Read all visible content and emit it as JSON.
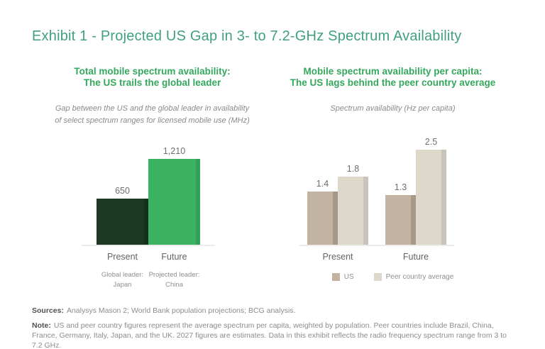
{
  "page": {
    "title": "Exhibit 1 - Projected US Gap in 3- to 7.2-GHz Spectrum Availability"
  },
  "colors": {
    "title_teal": "#3FA082",
    "heading_green": "#34A85C",
    "baseline_gray": "#ECECEC",
    "dark_green_bar": "#1B3823",
    "light_green_bar": "#3CB263",
    "tan_bar": "#C2B3A3",
    "beige_bar": "#DED8CB"
  },
  "chart_data": [
    {
      "type": "bar",
      "heading_line1": "Total mobile spectrum availability:",
      "heading_line2": "The US trails the global leader",
      "subtitle_line1": "Gap between the US and the global leader in availability",
      "subtitle_line2": "of select spectrum ranges for licensed mobile use (MHz)",
      "unit": "MHz",
      "categories": [
        "Present",
        "Future"
      ],
      "series": [
        {
          "name": "Gap (MHz)",
          "values": [
            650,
            1210
          ],
          "value_labels": [
            "650",
            "1,210"
          ],
          "colors": [
            "#1B3823",
            "#3CB263"
          ],
          "edge_colors": [
            "#12301D",
            "#34A058"
          ]
        }
      ],
      "category_captions": [
        [
          "Global leader:",
          "Japan"
        ],
        [
          "Projected leader:",
          "China"
        ]
      ],
      "ylim": [
        0,
        1210
      ],
      "grid": false,
      "legend": null
    },
    {
      "type": "bar",
      "heading_line1": "Mobile spectrum availability per capita:",
      "heading_line2": "The US lags behind the peer country average",
      "subtitle_line1": "Spectrum availability (Hz per capita)",
      "subtitle_line2": "",
      "unit": "Hz per capita",
      "categories": [
        "Present",
        "Future"
      ],
      "series": [
        {
          "name": "US",
          "values": [
            1.4,
            1.3
          ],
          "value_labels": [
            "1.4",
            "1.3"
          ],
          "color": "#C2B3A3",
          "edge_color": "#A89888"
        },
        {
          "name": "Peer country average",
          "values": [
            1.8,
            2.5
          ],
          "value_labels": [
            "1.8",
            "2.5"
          ],
          "color": "#DED8CB",
          "edge_color": "#C8C4BA"
        }
      ],
      "ylim": [
        0,
        2.5
      ],
      "grid": false,
      "legend": {
        "position": "bottom",
        "entries": [
          "US",
          "Peer country average"
        ]
      }
    }
  ],
  "footer": {
    "sources_label": "Sources:",
    "sources_text": "Analysys Mason 2; World Bank population projections; BCG analysis.",
    "note_label": "Note:",
    "note_text": "US and peer country figures represent the average spectrum per capita, weighted by population. Peer countries include Brazil, China, France, Germany, Italy, Japan, and the UK. 2027 figures are estimates. Data in this exhibit reflects the radio frequency spectrum range from 3 to 7.2 GHz."
  }
}
